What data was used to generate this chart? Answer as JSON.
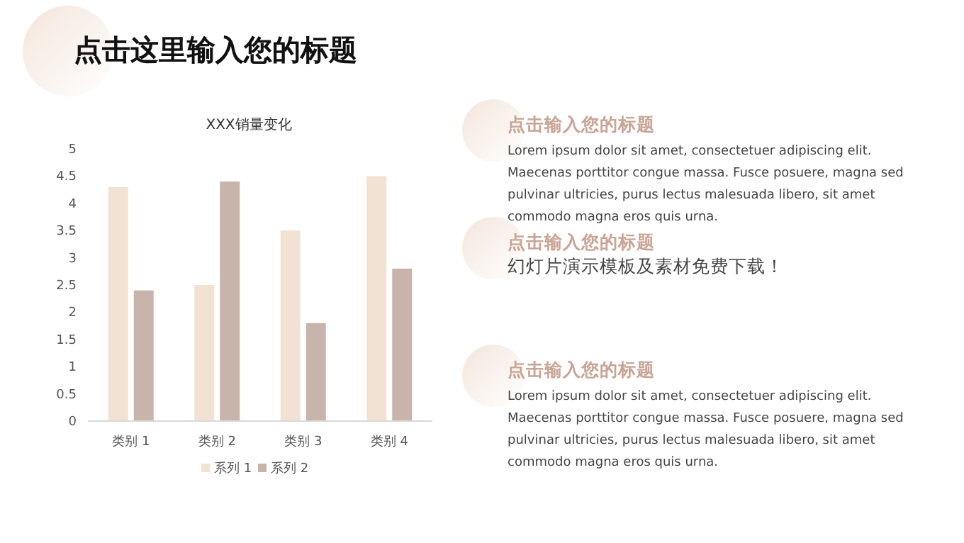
{
  "chart_data": [
    {
      "type": "other",
      "title": "点击这里输入您的标题",
      "annotations": [
        "点击输入您的标题",
        "Lorem ipsum dolor sit amet, consectetuer adipiscing elit. Maecenas porttitor congue massa. Fusce posuere, magna sed pulvinar ultricies, purus lectus malesuada libero, sit amet commodo magna eros quis urna.",
        "点击输入您的标题",
        "幻灯片演示模板及素材免费下载！",
        "点击输入您的标题",
        "Lorem ipsum dolor sit amet, consectetuer adipiscing elit. Maecenas porttitor congue massa. Fusce posuere, magna sed pulvinar ultricies, purus lectus malesuada libero, sit amet commodo magna eros quis urna."
      ]
    },
    {
      "type": "bar",
      "title": "XXX销量变化",
      "categories": [
        "类别 1",
        "类别 2",
        "类别 3",
        "类别 4"
      ],
      "series": [
        {
          "name": "系列 1",
          "color": "#f2e2d3",
          "values": [
            4.3,
            2.5,
            3.5,
            4.5
          ]
        },
        {
          "name": "系列 2",
          "color": "#c8b4aa",
          "values": [
            2.4,
            4.4,
            1.8,
            2.8
          ]
        }
      ],
      "ylim": [
        0,
        5
      ],
      "yticks": [
        0,
        0.5,
        1,
        1.5,
        2,
        2.5,
        3,
        3.5,
        4,
        4.5,
        5
      ],
      "legend": "bottom"
    }
  ]
}
